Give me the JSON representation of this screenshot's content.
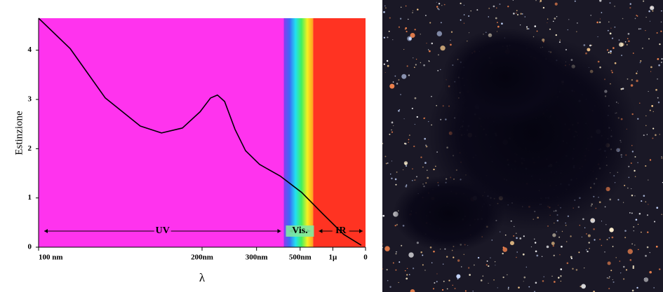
{
  "chart_data": {
    "type": "line",
    "y_label": "Estinzione",
    "x_label": "λ",
    "x": [
      10,
      9.03,
      7.96,
      6.89,
      6.24,
      5.6,
      5.06,
      4.74,
      4.53,
      4.31,
      3.99,
      3.67,
      3.24,
      2.6,
      1.95,
      1.31,
      0.67,
      0.13
    ],
    "series": [
      {
        "name": "Estinzione",
        "color": "#000000",
        "values": [
          4.65,
          4.03,
          3.03,
          2.46,
          2.32,
          2.42,
          2.75,
          3.03,
          3.09,
          2.96,
          2.39,
          1.96,
          1.68,
          1.44,
          1.11,
          0.68,
          0.26,
          0.04
        ]
      }
    ],
    "xlim": [
      10,
      0
    ],
    "ylim": [
      0,
      4.65
    ],
    "xticks": [
      {
        "value": 10,
        "label": "100 nm"
      },
      {
        "value": 5,
        "label": "200nm"
      },
      {
        "value": 3.333,
        "label": "300nm"
      },
      {
        "value": 2,
        "label": "500nm"
      },
      {
        "value": 1,
        "label": "1μ"
      },
      0
    ],
    "yticks": [
      0,
      1,
      2,
      3,
      4
    ],
    "bands": [
      {
        "from": 10,
        "to": 2.5,
        "color": "#ff33ee"
      },
      {
        "from": 2.5,
        "to": 1.6,
        "color": "spectrum"
      },
      {
        "from": 1.6,
        "to": 0,
        "color": "#ff3322"
      }
    ],
    "annotations": [
      {
        "text": "UV",
        "from": 10,
        "to": 2.5
      },
      {
        "text": "Vis.",
        "from": 2.5,
        "to": 1.6
      },
      {
        "text": "IR",
        "from": 1.6,
        "to": 0
      }
    ]
  }
}
